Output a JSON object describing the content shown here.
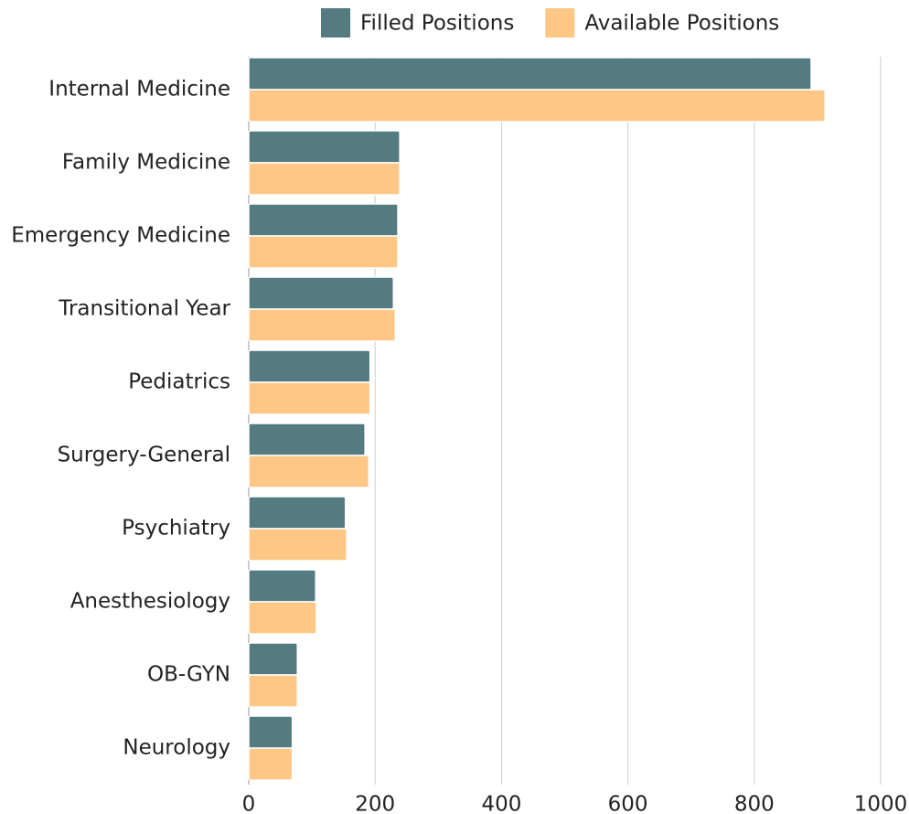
{
  "chart_data": {
    "type": "hbar",
    "categories": [
      "Internal Medicine",
      "Family Medicine",
      "Emergency Medicine",
      "Transitional Year",
      "Pediatrics",
      "Surgery-General",
      "Psychiatry",
      "Anesthesiology",
      "OB-GYN",
      "Neurology"
    ],
    "series": [
      {
        "name": "Filled Positions",
        "color": "#537b80",
        "values": [
          890,
          239,
          236,
          229,
          192,
          184,
          153,
          106,
          77,
          69
        ]
      },
      {
        "name": "Available Positions",
        "color": "#ffc785",
        "values": [
          912,
          239,
          236,
          232,
          192,
          190,
          155,
          107,
          77,
          69
        ]
      }
    ],
    "xlim": [
      0,
      1000
    ],
    "xticks": [
      0,
      200,
      400,
      600,
      800,
      1000
    ],
    "grid": true,
    "legend": "top"
  }
}
